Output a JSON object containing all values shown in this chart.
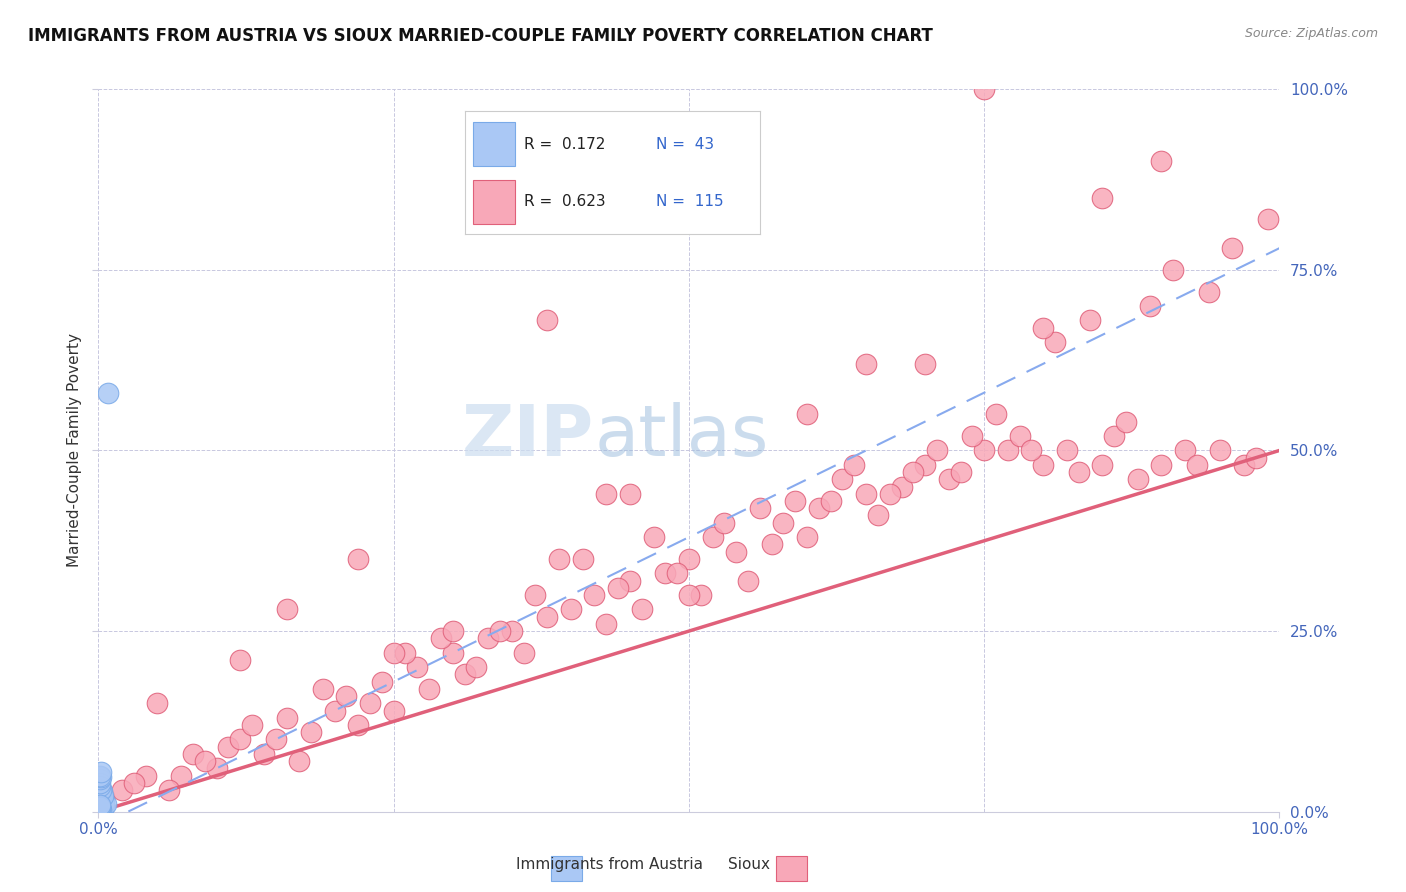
{
  "title": "IMMIGRANTS FROM AUSTRIA VS SIOUX MARRIED-COUPLE FAMILY POVERTY CORRELATION CHART",
  "source": "Source: ZipAtlas.com",
  "ylabel": "Married-Couple Family Poverty",
  "xlim": [
    0,
    1.0
  ],
  "ylim": [
    0,
    1.0
  ],
  "xtick_labels": [
    "0.0%",
    "100.0%"
  ],
  "ytick_labels": [
    "0.0%",
    "25.0%",
    "50.0%",
    "75.0%",
    "100.0%"
  ],
  "ytick_positions": [
    0.0,
    0.25,
    0.5,
    0.75,
    1.0
  ],
  "legend_r1": "R =  0.172",
  "legend_n1": "N =  43",
  "legend_r2": "R =  0.623",
  "legend_n2": "N =  115",
  "color_austria": "#aac8f5",
  "color_sioux": "#f8a8b8",
  "edge_austria": "#7aaae8",
  "edge_sioux": "#e0607a",
  "line_color_austria": "#88aaee",
  "line_color_sioux": "#e0607a",
  "background_color": "#ffffff",
  "grid_color": "#c8c8e0",
  "watermark_color": "#ddeeff",
  "title_color": "#111111",
  "tick_color": "#4466bb",
  "label_color": "#333333",
  "sioux_x": [
    0.005,
    0.02,
    0.04,
    0.07,
    0.08,
    0.1,
    0.11,
    0.12,
    0.13,
    0.14,
    0.15,
    0.16,
    0.17,
    0.18,
    0.2,
    0.21,
    0.22,
    0.23,
    0.24,
    0.25,
    0.27,
    0.28,
    0.3,
    0.31,
    0.33,
    0.35,
    0.36,
    0.38,
    0.4,
    0.42,
    0.43,
    0.45,
    0.46,
    0.48,
    0.5,
    0.51,
    0.52,
    0.54,
    0.55,
    0.57,
    0.58,
    0.6,
    0.61,
    0.62,
    0.63,
    0.65,
    0.66,
    0.68,
    0.7,
    0.71,
    0.72,
    0.73,
    0.75,
    0.77,
    0.78,
    0.8,
    0.82,
    0.83,
    0.85,
    0.86,
    0.87,
    0.88,
    0.9,
    0.92,
    0.93,
    0.95,
    0.97,
    0.98,
    0.03,
    0.06,
    0.09,
    0.19,
    0.26,
    0.29,
    0.32,
    0.37,
    0.41,
    0.44,
    0.47,
    0.49,
    0.53,
    0.56,
    0.59,
    0.64,
    0.67,
    0.69,
    0.74,
    0.76,
    0.79,
    0.81,
    0.84,
    0.89,
    0.91,
    0.94,
    0.96,
    0.99,
    0.34,
    0.39,
    0.43,
    0.16,
    0.22,
    0.3,
    0.5,
    0.6,
    0.7,
    0.8,
    0.9,
    0.05,
    0.12,
    0.25,
    0.45,
    0.65,
    0.85,
    0.38,
    0.75
  ],
  "sioux_y": [
    0.02,
    0.03,
    0.05,
    0.05,
    0.08,
    0.06,
    0.09,
    0.1,
    0.12,
    0.08,
    0.1,
    0.13,
    0.07,
    0.11,
    0.14,
    0.16,
    0.12,
    0.15,
    0.18,
    0.14,
    0.2,
    0.17,
    0.22,
    0.19,
    0.24,
    0.25,
    0.22,
    0.27,
    0.28,
    0.3,
    0.26,
    0.32,
    0.28,
    0.33,
    0.35,
    0.3,
    0.38,
    0.36,
    0.32,
    0.37,
    0.4,
    0.38,
    0.42,
    0.43,
    0.46,
    0.44,
    0.41,
    0.45,
    0.48,
    0.5,
    0.46,
    0.47,
    0.5,
    0.5,
    0.52,
    0.48,
    0.5,
    0.47,
    0.48,
    0.52,
    0.54,
    0.46,
    0.48,
    0.5,
    0.48,
    0.5,
    0.48,
    0.49,
    0.04,
    0.03,
    0.07,
    0.17,
    0.22,
    0.24,
    0.2,
    0.3,
    0.35,
    0.31,
    0.38,
    0.33,
    0.4,
    0.42,
    0.43,
    0.48,
    0.44,
    0.47,
    0.52,
    0.55,
    0.5,
    0.65,
    0.68,
    0.7,
    0.75,
    0.72,
    0.78,
    0.82,
    0.25,
    0.35,
    0.44,
    0.28,
    0.35,
    0.25,
    0.3,
    0.55,
    0.62,
    0.67,
    0.9,
    0.15,
    0.21,
    0.22,
    0.44,
    0.62,
    0.85,
    0.68,
    1.0
  ],
  "austria_x": [
    0.001,
    0.001,
    0.001,
    0.001,
    0.001,
    0.002,
    0.002,
    0.002,
    0.002,
    0.002,
    0.003,
    0.003,
    0.003,
    0.003,
    0.004,
    0.004,
    0.004,
    0.005,
    0.005,
    0.006,
    0.001,
    0.001,
    0.002,
    0.002,
    0.003,
    0.003,
    0.004,
    0.001,
    0.002,
    0.001,
    0.001,
    0.001,
    0.002,
    0.001,
    0.002,
    0.001,
    0.001,
    0.002,
    0.001,
    0.001,
    0.001,
    0.001,
    0.008
  ],
  "austria_y": [
    0.005,
    0.008,
    0.01,
    0.012,
    0.015,
    0.005,
    0.008,
    0.01,
    0.013,
    0.015,
    0.005,
    0.008,
    0.012,
    0.018,
    0.005,
    0.01,
    0.015,
    0.008,
    0.012,
    0.01,
    0.02,
    0.025,
    0.02,
    0.022,
    0.025,
    0.028,
    0.022,
    0.03,
    0.03,
    0.035,
    0.04,
    0.045,
    0.048,
    0.05,
    0.055,
    0.003,
    0.004,
    0.003,
    0.002,
    0.006,
    0.007,
    0.009,
    0.58
  ],
  "sioux_line_x": [
    0.0,
    1.0
  ],
  "sioux_line_y": [
    0.0,
    0.5
  ],
  "austria_line_x": [
    0.0,
    1.0
  ],
  "austria_line_y": [
    -0.02,
    0.78
  ]
}
